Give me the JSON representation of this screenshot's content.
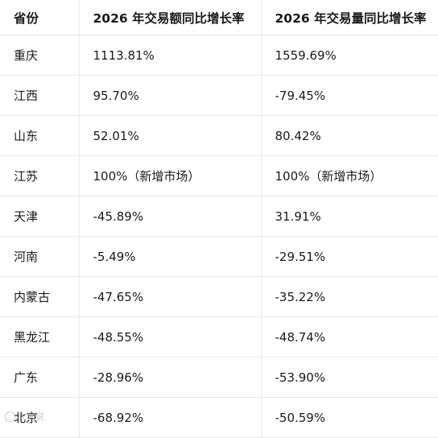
{
  "table": {
    "headers": [
      "省份",
      "2026 年交易额同比增长率",
      "2026 年交易量同比增长率"
    ],
    "rows": [
      [
        "重庆",
        "1113.81%",
        "1559.69%"
      ],
      [
        "江西",
        "95.70%",
        "-79.45%"
      ],
      [
        "山东",
        "52.01%",
        "80.42%"
      ],
      [
        "江苏",
        "100%（新增市场）",
        "100%（新增市场）"
      ],
      [
        "天津",
        "-45.89%",
        "31.91%"
      ],
      [
        "河南",
        "-5.49%",
        "-29.51%"
      ],
      [
        "内蒙古",
        "-47.65%",
        "-35.22%"
      ],
      [
        "黑龙江",
        "-48.55%",
        "-48.74%"
      ],
      [
        "广东",
        "-28.96%",
        "-53.90%"
      ],
      [
        "北京",
        "-68.92%",
        "-50.59%"
      ]
    ]
  },
  "watermark": {
    "text": "火星说",
    "icon": "watermark-logo-icon"
  }
}
